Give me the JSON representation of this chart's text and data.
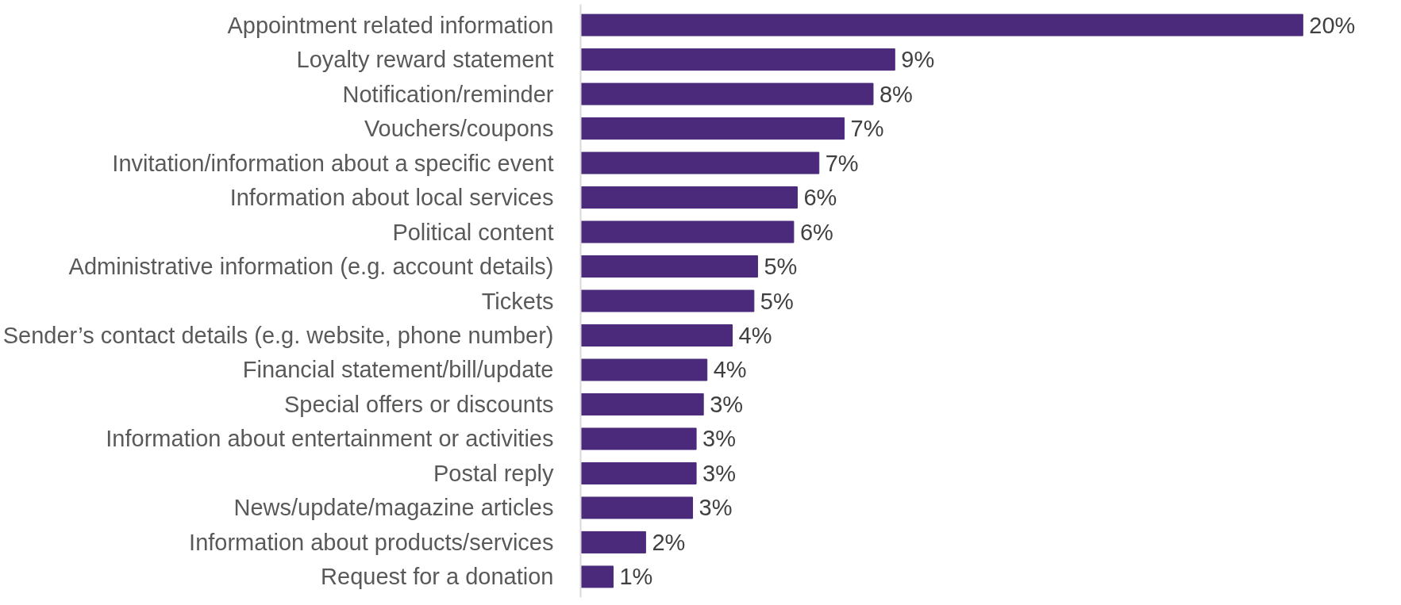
{
  "chart_data": {
    "type": "bar",
    "orientation": "horizontal",
    "color": "#4b2a7b",
    "categories": [
      "Appointment related information",
      "Loyalty reward statement",
      "Notification/reminder",
      "Vouchers/coupons",
      "Invitation/information about a specific event",
      "Information about local services",
      "Political content",
      "Administrative information (e.g. account details)",
      "Tickets",
      "Sender’s contact details (e.g. website, phone number)",
      "Financial statement/bill/update",
      "Special offers or discounts",
      "Information about entertainment or activities",
      "Postal reply",
      "News/update/magazine articles",
      "Information about products/services",
      "Request for a donation"
    ],
    "values": [
      20,
      8.7,
      8.1,
      7.3,
      6.6,
      6.0,
      5.9,
      4.9,
      4.8,
      4.2,
      3.5,
      3.4,
      3.2,
      3.2,
      3.1,
      1.8,
      0.9
    ],
    "value_labels": [
      "20%",
      "9%",
      "8%",
      "7%",
      "7%",
      "6%",
      "6%",
      "5%",
      "5%",
      "4%",
      "4%",
      "3%",
      "3%",
      "3%",
      "3%",
      "2%",
      "1%"
    ]
  }
}
